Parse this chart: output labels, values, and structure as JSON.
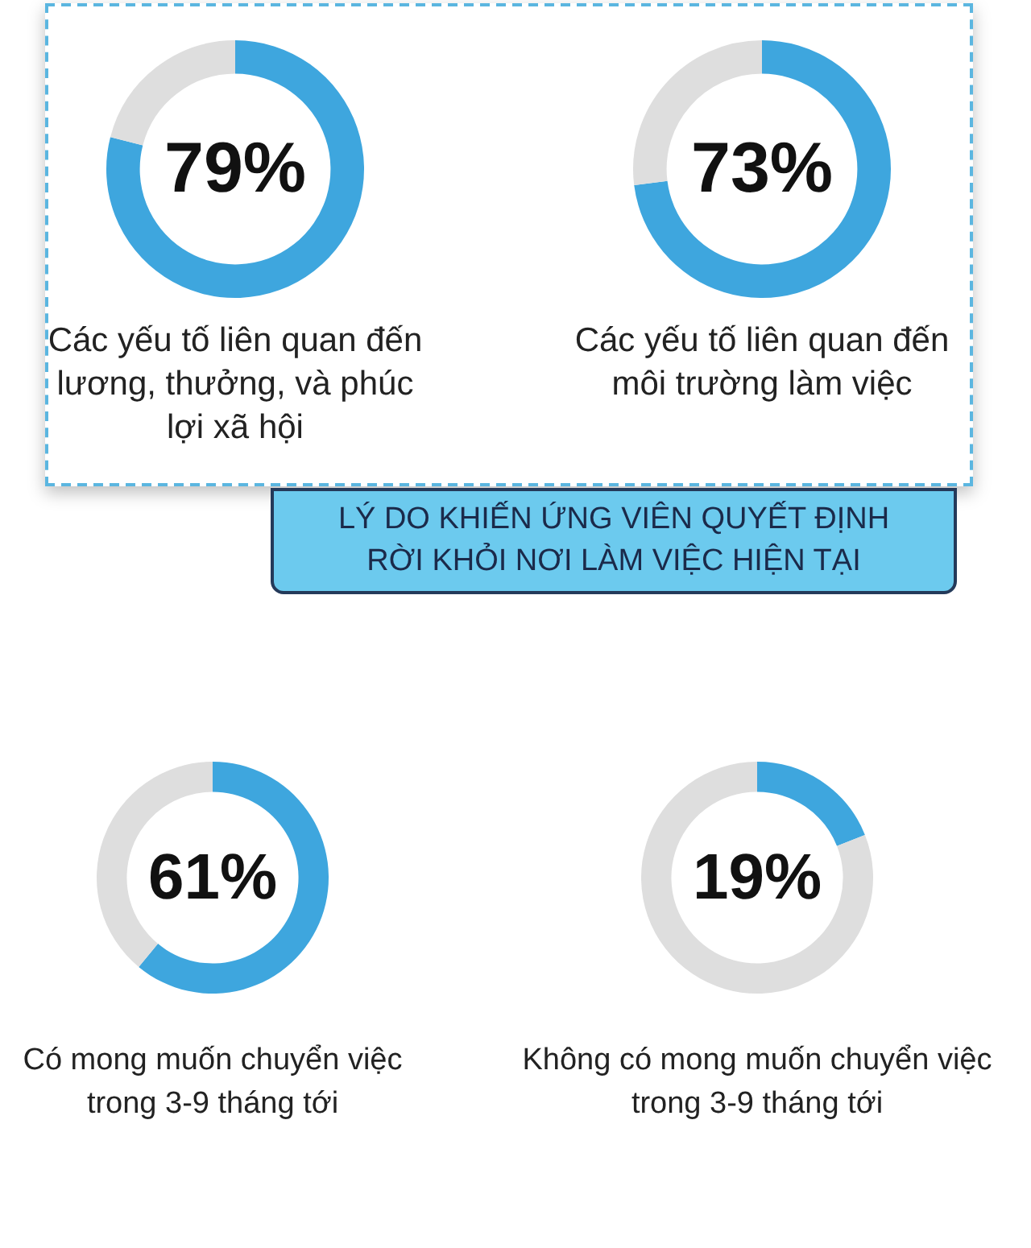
{
  "chart_data": [
    {
      "type": "donut",
      "title": "Các yếu tố liên quan đến lương, thưởng, và phúc lợi xã hội",
      "categories": [
        null,
        null
      ],
      "values": [
        79,
        21
      ],
      "colors": [
        "#3ea6de",
        "#dedede"
      ],
      "annotations": [
        "79%"
      ]
    },
    {
      "type": "donut",
      "title": "Các yếu tố liên quan đến môi trường làm việc",
      "categories": [
        null,
        null
      ],
      "values": [
        73,
        27
      ],
      "colors": [
        "#3ea6de",
        "#dedede"
      ],
      "annotations": [
        "73%"
      ]
    },
    {
      "type": "other",
      "title": "LÝ DO KHIẾN ỨNG VIÊN QUYẾT ĐỊNH RỜI KHỎI NƠI LÀM VIỆC HIỆN TẠI"
    },
    {
      "type": "donut",
      "title": "Có mong muốn chuyển việc trong 3-9 tháng tới",
      "categories": [
        null,
        null
      ],
      "values": [
        61,
        39
      ],
      "colors": [
        "#3ea6de",
        "#dedede"
      ],
      "annotations": [
        "61%"
      ]
    },
    {
      "type": "donut",
      "title": "Không có mong muốn chuyển việc trong 3-9 tháng tới",
      "categories": [
        null,
        null
      ],
      "values": [
        19,
        81
      ],
      "colors": [
        "#3ea6de",
        "#dedede"
      ],
      "annotations": [
        "19%"
      ]
    }
  ]
}
